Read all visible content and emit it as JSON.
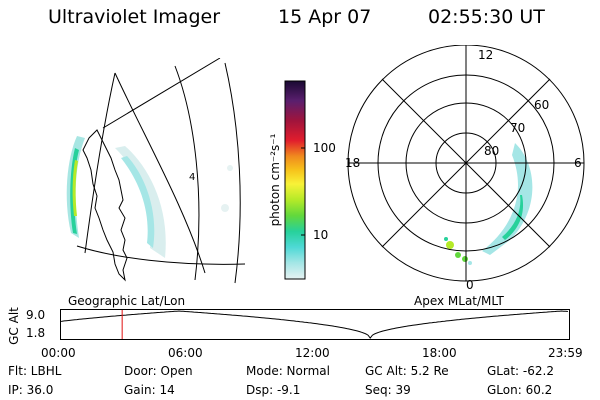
{
  "header": {
    "title": "Ultraviolet Imager",
    "date": "15 Apr 07",
    "time": "02:55:30 UT"
  },
  "geo_panel": {
    "label": "Geographic Lat/Lon",
    "marker": "4"
  },
  "apex_panel": {
    "label": "Apex MLat/MLT",
    "mlt_labels": [
      "12",
      "18",
      "6",
      "0"
    ],
    "lat_labels": [
      "60",
      "70",
      "80"
    ]
  },
  "colorbar": {
    "unit_label": "photon cm⁻²s⁻¹",
    "tick_labels": [
      "100",
      "10"
    ],
    "scale": "log",
    "colors": [
      "#1a0933",
      "#5a1f6e",
      "#a0143c",
      "#e11d2d",
      "#f08a1e",
      "#f7c31b",
      "#f8f238",
      "#b5ea28",
      "#62d83c",
      "#27d19b",
      "#4fd9d6",
      "#a5e6e6",
      "#e6f2f2"
    ]
  },
  "altitude_plot": {
    "ylabel": "GC Alt",
    "y_ticks": [
      "9.0",
      "1.8"
    ],
    "x_ticks": [
      "00:00",
      "06:00",
      "12:00",
      "18:00",
      "23:59"
    ],
    "current_time_hours": 2.925,
    "marker_color": "#e01010"
  },
  "status": {
    "flt": "Flt: LBHL",
    "door": "Door: Open",
    "mode": "Mode: Normal",
    "gc_alt": "GC Alt: 5.2 Re",
    "glat": "GLat: -62.2",
    "ip": "IP: 36.0",
    "gain": "Gain: 14",
    "dsp": "Dsp:    -9.1",
    "seq": "Seq: 39",
    "glon": "GLon: 60.2"
  }
}
